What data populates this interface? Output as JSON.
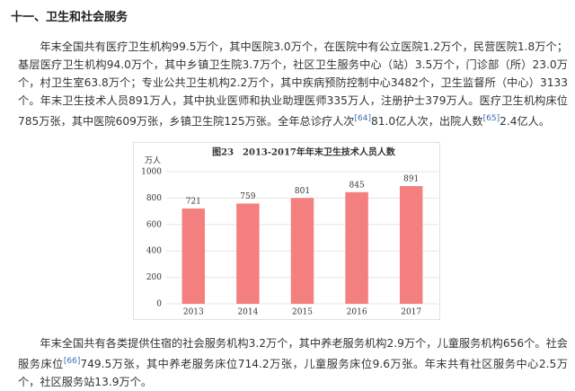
{
  "heading": "十一、卫生和社会服务",
  "paragraphs": [
    [
      "年末全国共有医疗卫生机构99.5万个，其中医院3.0万个，在医院中有公立医院1.2万个，民营医院1.8万个；基层医疗卫生机构94.0万个，其中乡镇卫生院3.7万个，社区卫生服务中心（站）3.5万个，门诊部（所）23.0万个，村卫生室63.8万个；专业公共卫生机构2.2万个，其中疾病预防控制中心3482个，卫生监督所（中心）3133个。年末卫生技术人员891万人，其中执业医师和执业助理医师335万人，注册护士379万人。医疗卫生机构床位785万张，其中医院609万张，乡镇卫生院125万张。全年总诊疗人次",
      "[64]",
      "81.0亿人次，出院人数",
      "[65]",
      "2.4亿人。"
    ],
    [
      "年末全国共有各类提供住宿的社会服务机构3.2万个，其中养老服务机构2.9万个，儿童服务机构656个。社会服务床位",
      "[66]",
      "749.5万张，其中养老服务床位714.2万张，儿童服务床位9.6万张。年末共有社区服务中心2.5万个，社区服务站13.9万个。"
    ]
  ],
  "chart_data": {
    "type": "bar",
    "title": "图23　2013-2017年年末卫生技术人员人数",
    "y_label": "万人",
    "categories": [
      "2013",
      "2014",
      "2015",
      "2016",
      "2017"
    ],
    "values": [
      721,
      759,
      801,
      845,
      891
    ],
    "color": "#f47f7f",
    "ylim": [
      0,
      1000
    ],
    "yticks": [
      0,
      200,
      400,
      600,
      800,
      1000
    ],
    "grid": true
  }
}
